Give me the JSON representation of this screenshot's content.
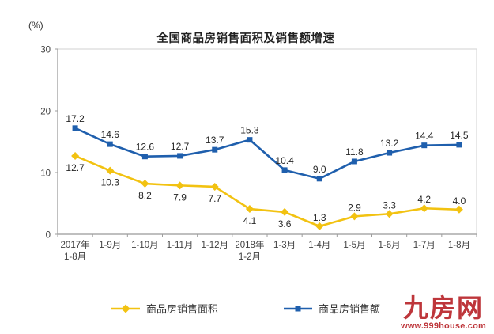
{
  "chart_data": {
    "type": "line",
    "title": "全国商品房销售面积及销售额增速",
    "ylabel": "(%)",
    "xlabel": "",
    "ylim": [
      0,
      30
    ],
    "y_ticks": [
      0,
      10,
      20,
      30
    ],
    "grid": false,
    "legend_position": "bottom",
    "categories": [
      "2017年\n1-8月",
      "1-9月",
      "1-10月",
      "1-11月",
      "1-12月",
      "2018年\n1-2月",
      "1-3月",
      "1-4月",
      "1-5月",
      "1-6月",
      "1-7月",
      "1-8月"
    ],
    "series": [
      {
        "name": "商品房销售面积",
        "color": "#F2C211",
        "marker": "diamond",
        "values": [
          12.7,
          10.3,
          8.2,
          7.9,
          7.7,
          4.1,
          3.6,
          1.3,
          2.9,
          3.3,
          4.2,
          4.0
        ],
        "label_position": [
          "below",
          "below",
          "below",
          "below",
          "below",
          "below",
          "below",
          "above",
          "above",
          "above",
          "above",
          "above"
        ]
      },
      {
        "name": "商品房销售额",
        "color": "#1F5FAD",
        "marker": "square",
        "values": [
          17.2,
          14.6,
          12.6,
          12.7,
          13.7,
          15.3,
          10.4,
          9.0,
          11.8,
          13.2,
          14.4,
          14.5
        ],
        "label_position": [
          "above",
          "above",
          "above",
          "above",
          "above",
          "above",
          "above",
          "above",
          "above",
          "above",
          "above",
          "above"
        ]
      }
    ]
  },
  "watermark": {
    "logo": "九房网",
    "url": "www.999house.com",
    "color": "#BE363B"
  }
}
